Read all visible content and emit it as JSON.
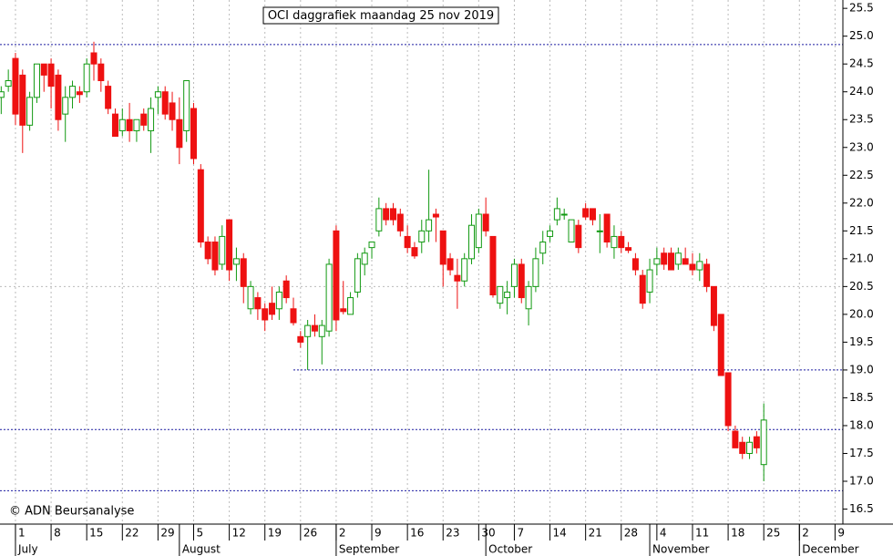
{
  "chart_data": {
    "type": "candlestick",
    "title": "OCI daggrafiek maandag 25 nov 2019",
    "credit": "© ADN Beursanalyse",
    "up_color": "#119911",
    "down_color": "#ee1111",
    "open": [
      23.9,
      24.1,
      24.6,
      24.3,
      23.4,
      23.9,
      24.5,
      24.5,
      24.3,
      23.6,
      23.9,
      24.0,
      24.0,
      24.7,
      24.5,
      24.1,
      23.6,
      23.3,
      23.5,
      23.3,
      23.6,
      23.3,
      23.9,
      24.0,
      23.8,
      23.5,
      23.3,
      23.7,
      22.6,
      21.3,
      21.3,
      20.9,
      21.7,
      20.9,
      21.0,
      20.1,
      20.3,
      20.1,
      20.2,
      20.1,
      20.6,
      20.1,
      19.6,
      19.6,
      19.8,
      19.6,
      19.7,
      21.5,
      20.1,
      20.0,
      20.4,
      20.9,
      21.2,
      21.5,
      21.9,
      21.9,
      21.8,
      21.4,
      21.2,
      21.3,
      21.5,
      21.8,
      21.5,
      21.0,
      20.7,
      20.6,
      21.0,
      21.2,
      21.8,
      21.4,
      20.2,
      20.3,
      20.5,
      20.9,
      20.1,
      20.5,
      21.1,
      21.4,
      21.7,
      21.8,
      21.3,
      21.6,
      21.9,
      21.9,
      21.5,
      21.8,
      21.2,
      21.4,
      21.2,
      21.0,
      20.7,
      20.4,
      20.9,
      21.1,
      21.1,
      20.9,
      21.0,
      20.9,
      20.8,
      20.9,
      20.5,
      20.0,
      18.95,
      17.9,
      17.7,
      17.5,
      17.8,
      17.3
    ],
    "high": [
      24.1,
      24.4,
      24.7,
      24.4,
      24.0,
      24.5,
      24.5,
      24.6,
      24.4,
      24.1,
      24.2,
      24.1,
      24.6,
      24.9,
      24.6,
      24.2,
      23.7,
      23.7,
      23.8,
      23.5,
      23.7,
      23.9,
      24.1,
      24.1,
      24.0,
      23.9,
      24.2,
      23.8,
      22.7,
      21.4,
      21.4,
      21.6,
      21.7,
      21.2,
      21.1,
      20.6,
      20.4,
      20.2,
      20.5,
      20.5,
      20.7,
      20.3,
      19.7,
      19.9,
      20.0,
      19.9,
      21.0,
      21.6,
      20.6,
      20.4,
      21.1,
      21.2,
      21.3,
      22.1,
      22.0,
      22.0,
      21.9,
      21.6,
      21.3,
      21.7,
      22.6,
      21.9,
      21.5,
      21.1,
      21.0,
      21.1,
      21.8,
      21.9,
      22.1,
      21.4,
      20.5,
      20.6,
      21.0,
      21.0,
      20.6,
      21.2,
      21.5,
      21.6,
      22.1,
      21.9,
      21.7,
      21.7,
      22.0,
      21.9,
      21.8,
      21.8,
      21.6,
      21.5,
      21.3,
      21.1,
      20.8,
      21.0,
      21.2,
      21.2,
      21.2,
      21.2,
      21.2,
      21.1,
      21.1,
      21.0,
      20.5,
      20.0,
      18.95,
      18.0,
      17.8,
      17.8,
      17.9,
      18.4
    ],
    "low": [
      23.6,
      24.0,
      23.4,
      22.9,
      23.3,
      23.8,
      24.0,
      23.7,
      23.3,
      23.1,
      23.7,
      23.8,
      23.9,
      24.2,
      24.0,
      23.6,
      23.2,
      23.2,
      23.1,
      23.1,
      23.3,
      22.9,
      23.6,
      23.5,
      23.3,
      22.7,
      23.1,
      22.7,
      21.2,
      20.9,
      20.7,
      20.8,
      20.6,
      20.6,
      20.2,
      20.0,
      19.9,
      19.7,
      19.9,
      19.9,
      20.2,
      19.8,
      19.4,
      19.0,
      19.6,
      19.1,
      19.6,
      19.7,
      20.0,
      20.0,
      20.3,
      20.7,
      21.0,
      21.4,
      21.6,
      21.6,
      21.4,
      21.1,
      21.0,
      21.1,
      21.3,
      21.3,
      20.5,
      20.7,
      20.1,
      20.5,
      20.9,
      21.1,
      21.4,
      20.3,
      20.1,
      20.0,
      20.3,
      20.2,
      19.8,
      20.4,
      20.9,
      21.3,
      21.6,
      21.7,
      21.3,
      21.1,
      21.7,
      21.6,
      21.1,
      21.2,
      21.0,
      21.1,
      21.1,
      20.7,
      20.1,
      20.2,
      20.7,
      20.8,
      20.8,
      20.8,
      20.9,
      20.7,
      20.6,
      20.4,
      19.7,
      18.9,
      17.9,
      17.6,
      17.4,
      17.4,
      17.5,
      17.0
    ],
    "close": [
      24.0,
      24.2,
      23.6,
      23.4,
      23.9,
      24.5,
      24.3,
      24.1,
      23.5,
      23.9,
      24.1,
      23.95,
      24.5,
      24.5,
      24.2,
      23.7,
      23.2,
      23.5,
      23.3,
      23.5,
      23.4,
      23.7,
      24.0,
      23.6,
      23.5,
      23.0,
      24.2,
      22.8,
      21.3,
      21.0,
      20.8,
      21.4,
      20.8,
      21.0,
      20.5,
      20.5,
      20.1,
      19.9,
      20.0,
      20.4,
      20.3,
      19.85,
      19.5,
      19.8,
      19.7,
      19.8,
      20.9,
      19.9,
      20.05,
      20.3,
      21.0,
      21.1,
      21.3,
      21.9,
      21.7,
      21.7,
      21.5,
      21.2,
      21.05,
      21.5,
      21.7,
      21.75,
      20.9,
      20.8,
      20.6,
      21.0,
      21.6,
      21.8,
      21.5,
      20.35,
      20.5,
      20.4,
      20.9,
      20.3,
      20.5,
      21.0,
      21.3,
      21.5,
      21.9,
      21.8,
      21.7,
      21.2,
      21.75,
      21.7,
      21.5,
      21.3,
      21.4,
      21.2,
      21.15,
      20.8,
      20.2,
      20.8,
      21.0,
      20.9,
      20.8,
      21.1,
      20.9,
      20.8,
      20.95,
      20.5,
      19.8,
      18.9,
      18.0,
      17.6,
      17.5,
      17.7,
      17.6,
      18.1
    ],
    "xlim": [
      -0.17,
      118.1
    ],
    "ylim": [
      16.23,
      25.65
    ],
    "yticks": [
      16.5,
      {
        "value": 17,
        "label": "17.0"
      },
      17.5,
      {
        "value": 18,
        "label": "18.0"
      },
      18.5,
      {
        "value": 19,
        "label": "19.0"
      },
      19.5,
      {
        "value": 20,
        "label": "20.0"
      },
      20.5,
      {
        "value": 21,
        "label": "21.0"
      },
      21.5,
      {
        "value": 22,
        "label": "22.0"
      },
      22.5,
      {
        "value": 23,
        "label": "23.0"
      },
      23.5,
      {
        "value": 24,
        "label": "24.0"
      },
      24.5,
      {
        "value": 25,
        "label": "25.0"
      },
      25.5
    ],
    "xticks": [
      {
        "value": 2,
        "label": "1"
      },
      {
        "value": 7,
        "label": "8"
      },
      {
        "value": 12,
        "label": "15"
      },
      {
        "value": 17,
        "label": "22"
      },
      {
        "value": 22,
        "label": "29"
      },
      {
        "value": 27,
        "label": "5"
      },
      {
        "value": 32,
        "label": "12"
      },
      {
        "value": 37,
        "label": "19"
      },
      {
        "value": 42,
        "label": "26"
      },
      {
        "value": 47,
        "label": "2"
      },
      {
        "value": 52,
        "label": "9"
      },
      {
        "value": 57,
        "label": "16"
      },
      {
        "value": 62,
        "label": "23"
      },
      {
        "value": 67,
        "label": "30"
      },
      {
        "value": 72,
        "label": "7"
      },
      {
        "value": 77,
        "label": "14"
      },
      {
        "value": 82,
        "label": "21"
      },
      {
        "value": 87,
        "label": "28"
      },
      {
        "value": 92,
        "label": "4"
      },
      {
        "value": 97,
        "label": "11"
      },
      {
        "value": 102,
        "label": "18"
      },
      {
        "value": 107,
        "label": "25"
      },
      {
        "value": 112,
        "label": "2"
      },
      {
        "value": 117,
        "label": "9"
      }
    ],
    "months": [
      {
        "value": 2,
        "label": "July"
      },
      {
        "value": 25,
        "label": "August"
      },
      {
        "value": 47,
        "label": "September"
      },
      {
        "value": 68,
        "label": "October"
      },
      {
        "value": 91,
        "label": "November"
      },
      {
        "value": 112,
        "label": "December"
      }
    ],
    "grid_y": [
      20.5
    ],
    "levels": [
      {
        "value": 24.85
      },
      {
        "value": 19.0,
        "from": 41
      },
      {
        "value": 17.93
      },
      {
        "value": 16.83
      }
    ]
  }
}
